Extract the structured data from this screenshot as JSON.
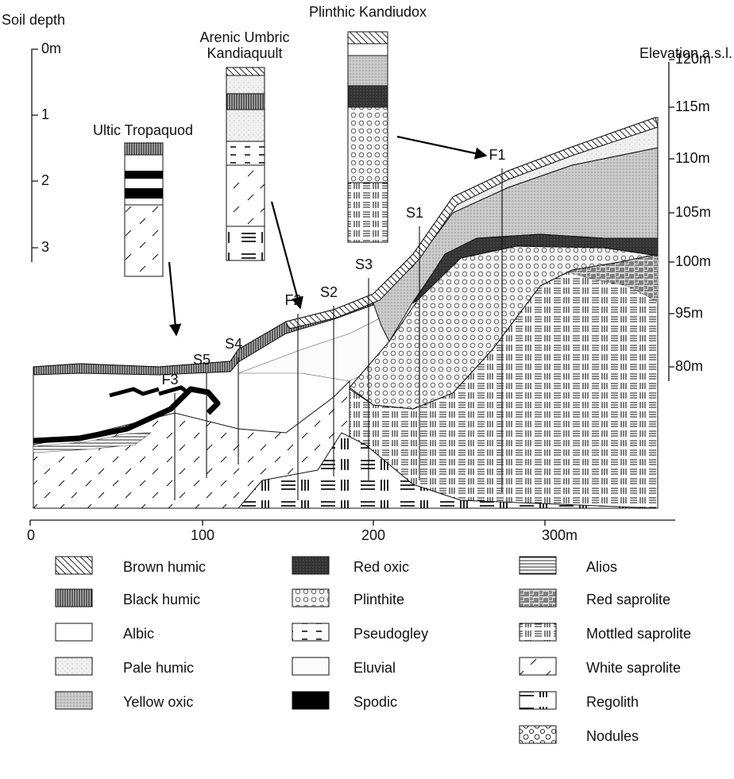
{
  "depth_scale": {
    "title": "Soil depth",
    "labels": [
      "0m",
      "1",
      "2",
      "3"
    ]
  },
  "elevation_scale": {
    "title": "Elevation a.s.l.",
    "labels": [
      "120m",
      "115m",
      "110m",
      "105m",
      "100m",
      "95m",
      "80m"
    ]
  },
  "soil_profiles": [
    {
      "name_lines": [
        "Ultic Tropaquod"
      ]
    },
    {
      "name_lines": [
        "Arenic Umbric",
        "Kandiaquult"
      ]
    },
    {
      "name_lines": [
        "Plinthic Kandiudox"
      ]
    }
  ],
  "sites": [
    "F3",
    "S5",
    "S4",
    "F2",
    "S2",
    "S3",
    "S1",
    "F1"
  ],
  "distance_axis": [
    "0",
    "100",
    "200",
    "300m"
  ],
  "legend": [
    "Brown humic",
    "Black humic",
    "Albic",
    "Pale humic",
    "Yellow oxic",
    "Red oxic",
    "Plinthite",
    "Pseudogley",
    "Eluvial",
    "Spodic",
    "Alios",
    "Red saprolite",
    "Mottled saprolite",
    "White saprolite",
    "Regolith",
    "Nodules"
  ]
}
